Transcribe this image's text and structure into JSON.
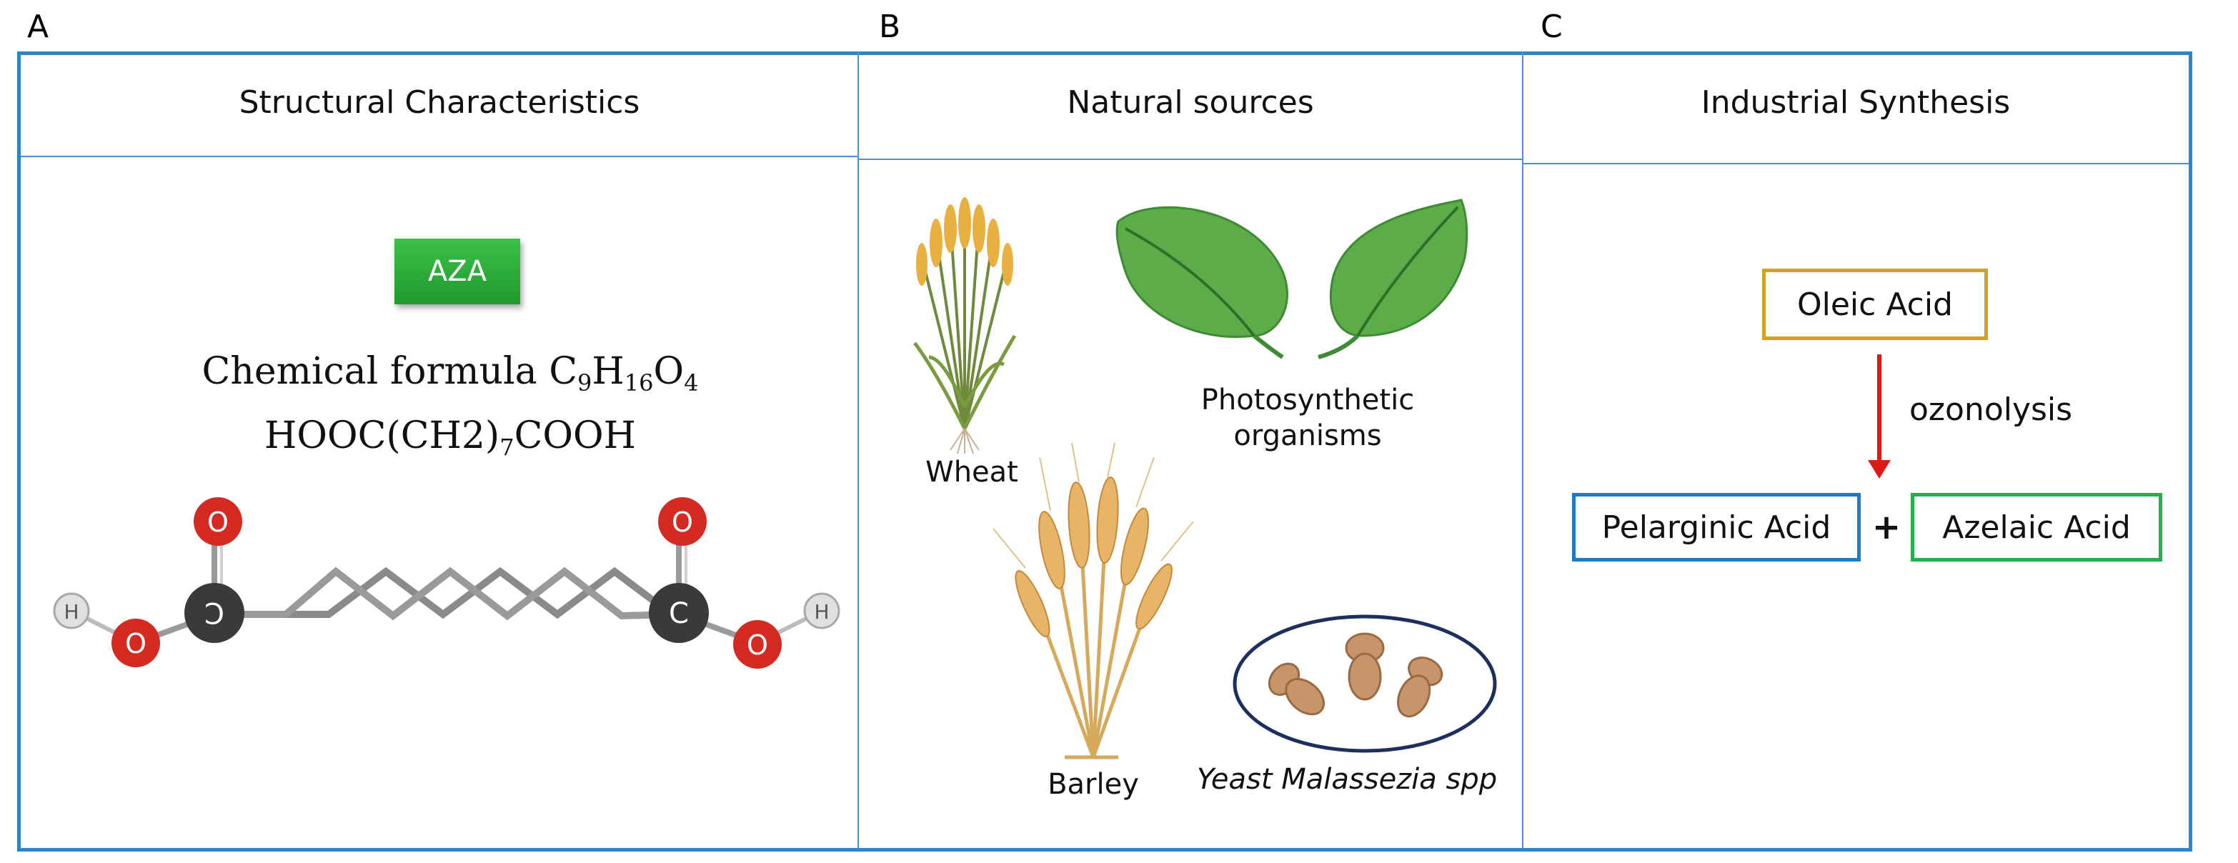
{
  "panels": {
    "a_letter": "A",
    "b_letter": "B",
    "c_letter": "C"
  },
  "headers": {
    "structural": "Structural Characteristics",
    "natural": "Natural sources",
    "industrial": "Industrial Synthesis"
  },
  "structure": {
    "badge": "AZA",
    "formula_prefix": "Chemical formula ",
    "formula": {
      "c": "C",
      "c_n": "9",
      "h": "H",
      "h_n": "16",
      "o": "O",
      "o_n": "4"
    },
    "condensed_a": "HOOC(CH2)",
    "condensed_n": "7",
    "condensed_b": "COOH",
    "atoms": {
      "oxygen": "O",
      "carbon_left": "C",
      "carbon_right": "C",
      "hydrogen": "H"
    }
  },
  "natural_sources": {
    "wheat": "Wheat",
    "photosynthetic_1": "Photosynthetic",
    "photosynthetic_2": "organisms",
    "barley": "Barley",
    "yeast": "Yeast Malassezia spp"
  },
  "synthesis": {
    "start": "Oleic Acid",
    "process": "ozonolysis",
    "product_1": "Pelarginic Acid",
    "plus": "+",
    "product_2": "Azelaic Acid"
  },
  "colors": {
    "frame": "#2a86c8",
    "oleic_border": "#d4a020",
    "pelarginic_border": "#1a7cc8",
    "azelaic_border": "#22b04a",
    "arrow": "#e01818",
    "badge": "#2eaa3c",
    "oxygen": "#d42a22",
    "carbon": "#3a3a3a",
    "hydrogen": "#d8d8d8",
    "leaf": "#5cad4a",
    "grain": "#e8b040",
    "yeast": "#c8946a"
  }
}
